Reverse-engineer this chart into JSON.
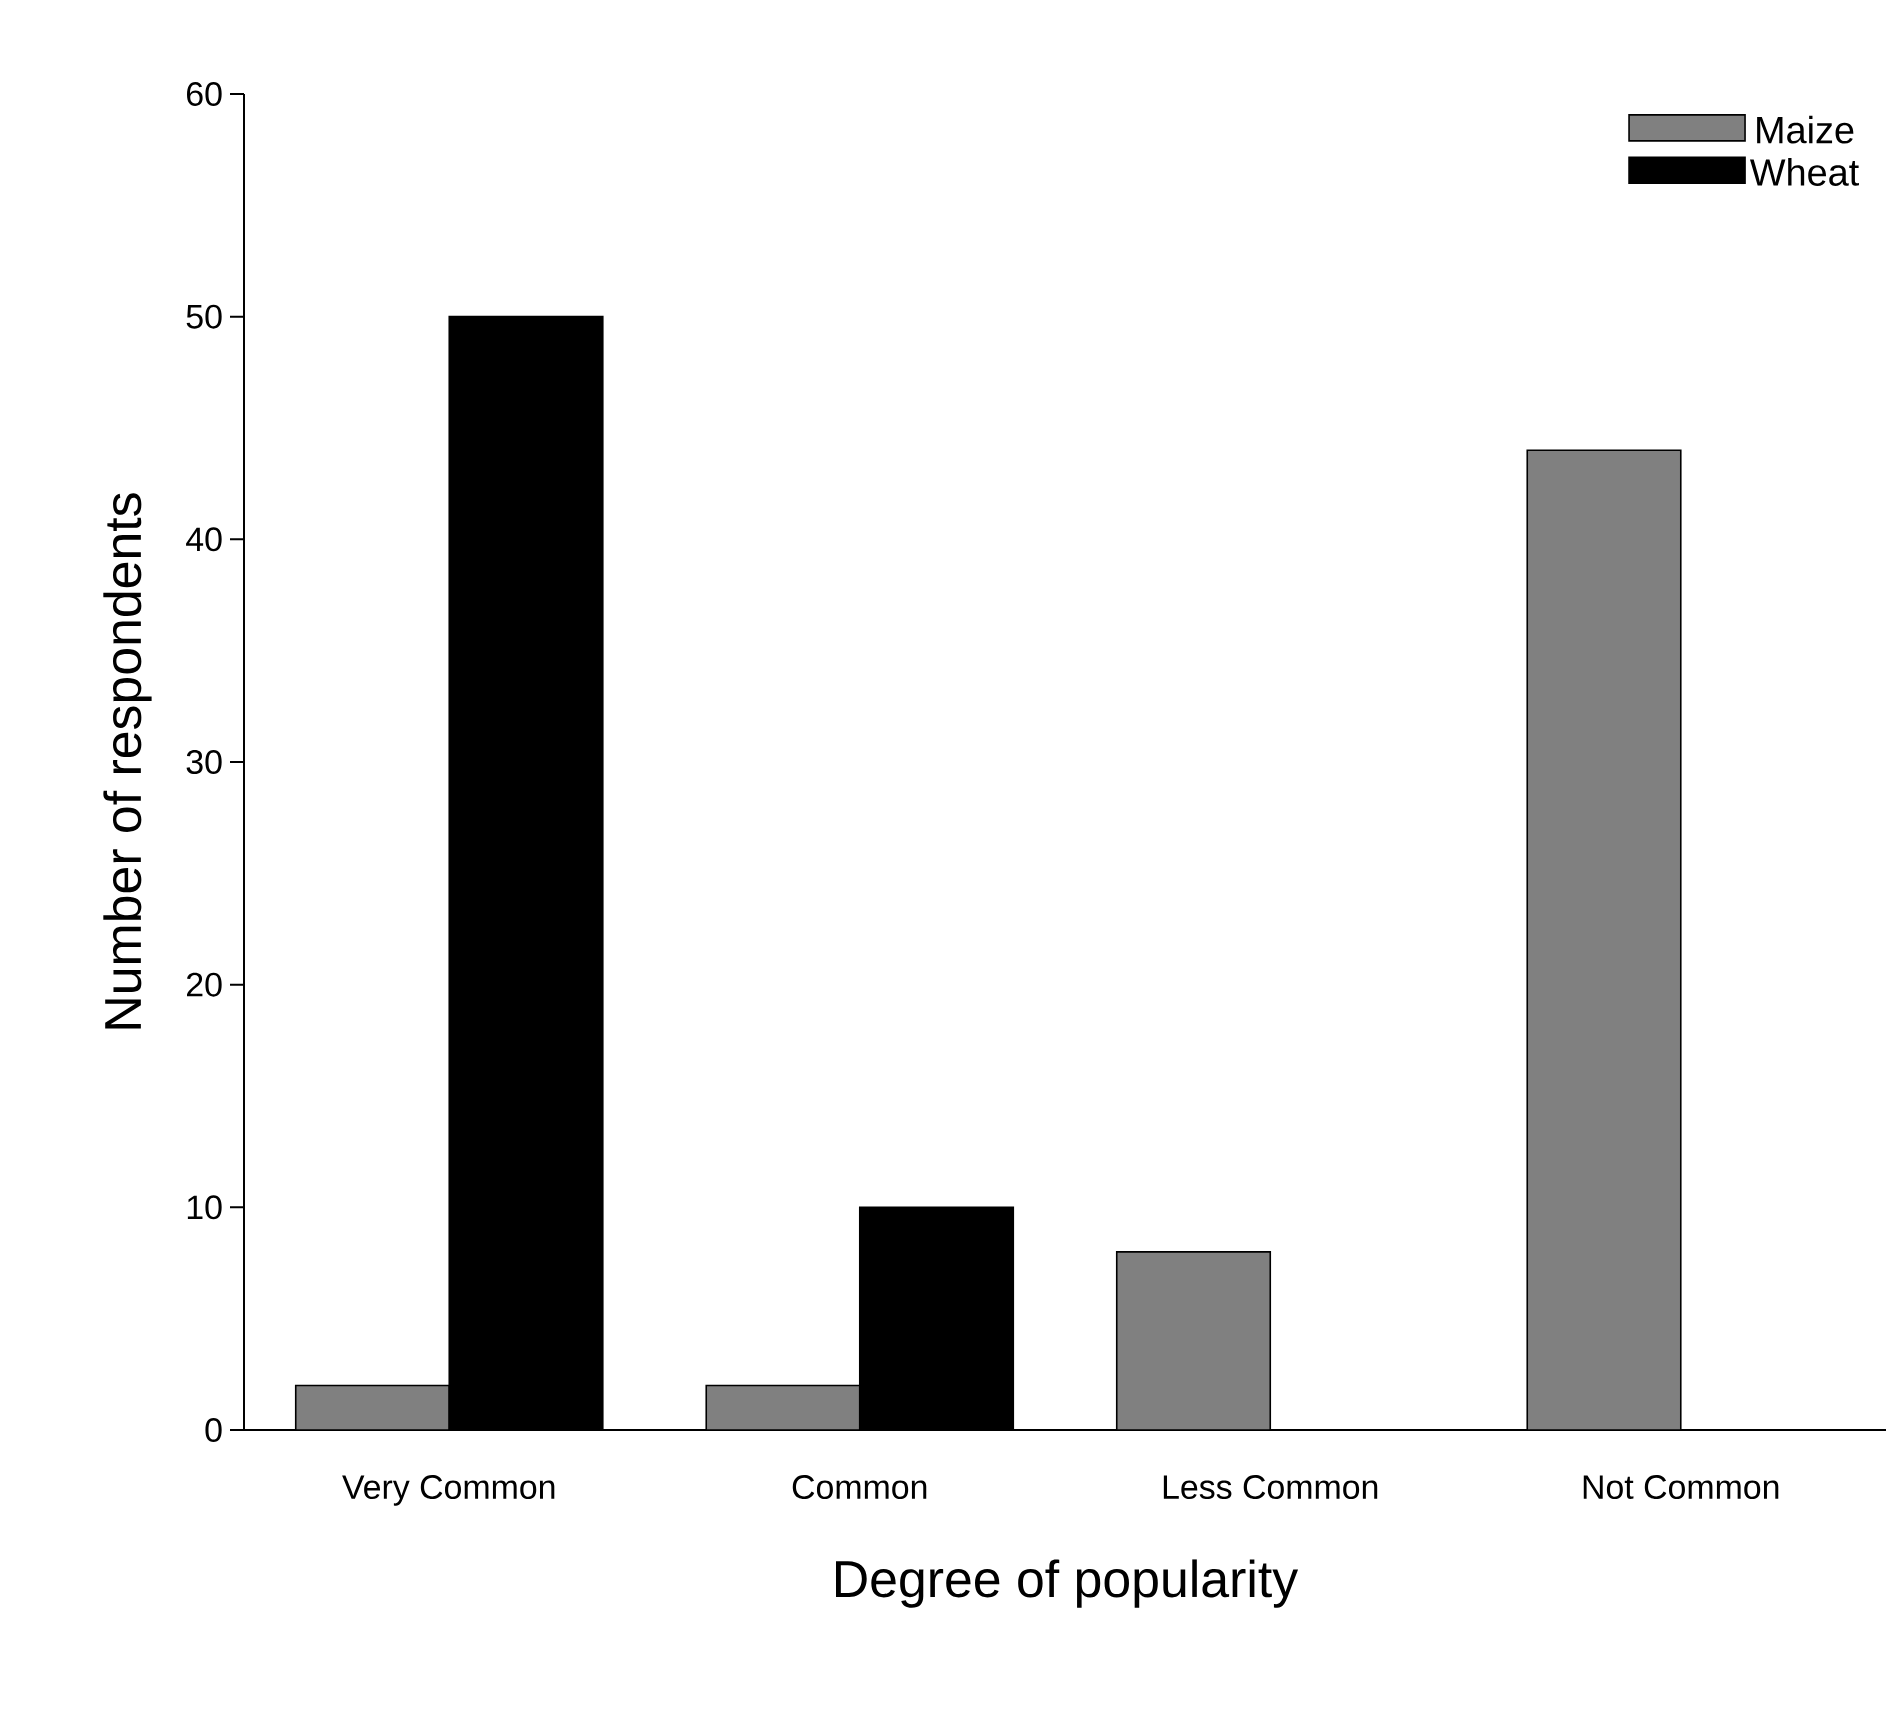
{
  "chart_data": {
    "type": "bar",
    "xlabel": "Degree of popularity",
    "ylabel": "Number of respondents",
    "categories": [
      "Very Common",
      "Common",
      "Less Common",
      "Not Common"
    ],
    "series": [
      {
        "name": "Maize",
        "color": "#808080",
        "values": [
          2,
          2,
          8,
          44
        ]
      },
      {
        "name": "Wheat",
        "color": "#000000",
        "values": [
          50,
          10,
          0,
          0
        ]
      }
    ],
    "ylim": [
      0,
      60
    ],
    "yticks": [
      0,
      10,
      20,
      30,
      40,
      50,
      60
    ],
    "legend": "top right",
    "grid": false
  }
}
